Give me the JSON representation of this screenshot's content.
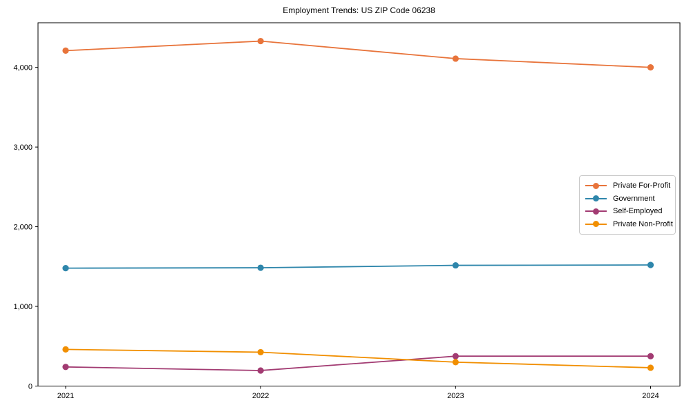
{
  "chart_data": {
    "type": "line",
    "title": "Employment Trends: US ZIP Code 06238",
    "xlabel": "",
    "ylabel": "",
    "categories": [
      "2021",
      "2022",
      "2023",
      "2024"
    ],
    "series": [
      {
        "name": "Private For-Profit",
        "color": "#e8743b",
        "values": [
          4210,
          4330,
          4110,
          4000
        ]
      },
      {
        "name": "Government",
        "color": "#2e86ab",
        "values": [
          1480,
          1485,
          1515,
          1520
        ]
      },
      {
        "name": "Self-Employed",
        "color": "#a23b72",
        "values": [
          240,
          195,
          375,
          375
        ]
      },
      {
        "name": "Private Non-Profit",
        "color": "#f18f01",
        "values": [
          460,
          425,
          300,
          230
        ]
      }
    ],
    "y_ticks": [
      0,
      1000,
      2000,
      3000,
      4000
    ],
    "y_tick_labels": [
      "0",
      "1,000",
      "2,000",
      "3,000",
      "4,000"
    ],
    "ylim": [
      0,
      4560
    ],
    "grid": false,
    "legend_position": "center right",
    "marker": "circle"
  }
}
